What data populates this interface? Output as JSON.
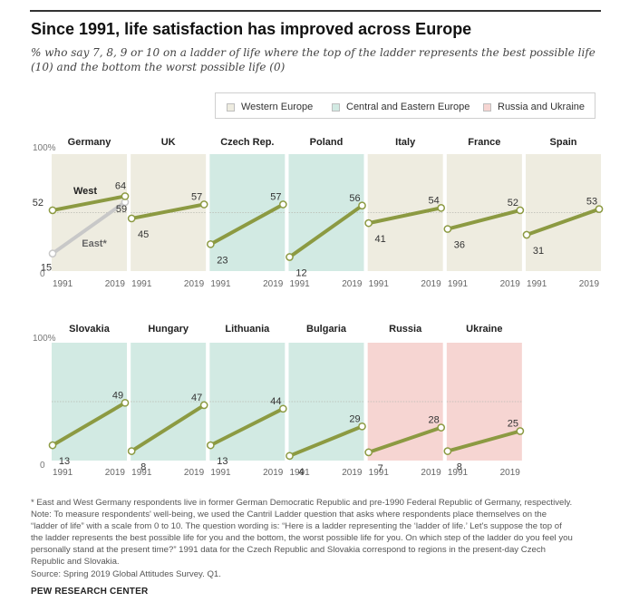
{
  "title": "Since 1991, life satisfaction has improved across Europe",
  "subtitle": "% who say 7, 8, 9 or 10 on a ladder of life where the top of the ladder represents the best possible life (10) and the bottom the worst possible life (0)",
  "legend": [
    {
      "label": "Western Europe",
      "color": "#eeece0"
    },
    {
      "label": "Central and Eastern Europe",
      "color": "#d2eae3"
    },
    {
      "label": "Russia and Ukraine",
      "color": "#f6d5d2"
    }
  ],
  "colors": {
    "line": "#8c9a42",
    "east_line": "#c8c8c8",
    "marker_fill": "#ffffff"
  },
  "footnote_lines": [
    "* East and West Germany respondents live in former German Democratic Republic and pre-1990 Federal Republic of Germany, respectively.",
    "Note: To measure respondents' well-being, we used the Cantril Ladder question that asks where respondents place themselves on the",
    "“ladder of life” with a scale from 0 to 10. The question wording is: “Here is a ladder representing the ‘ladder of life.’ Let's suppose the top of",
    "the ladder represents the best possible life for you and the bottom, the worst possible life for you. On which step of the ladder do you feel you",
    "personally stand at the present time?” 1991 data for the Czech Republic and Slovakia correspond to regions in the present-day Czech",
    "Republic and Slovakia.",
    "Source: Spring 2019 Global Attitudes Survey. Q1."
  ],
  "brand": "PEW RESEARCH CENTER",
  "chart_data": {
    "type": "line",
    "x": [
      1991,
      2019
    ],
    "x_tick_labels": [
      "1991",
      "2019"
    ],
    "ylim": [
      0,
      100
    ],
    "y_tick_labels": [
      "100%",
      "0"
    ],
    "reference_line": 50,
    "panels": [
      {
        "country": "Germany",
        "region": "western",
        "series": [
          {
            "name": "West",
            "values": [
              52,
              64
            ]
          },
          {
            "name": "East*",
            "values": [
              15,
              59
            ]
          }
        ]
      },
      {
        "country": "UK",
        "region": "western",
        "series": [
          {
            "name": "UK",
            "values": [
              45,
              57
            ]
          }
        ]
      },
      {
        "country": "Czech Rep.",
        "region": "central_eastern",
        "series": [
          {
            "name": "Czech Rep.",
            "values": [
              23,
              57
            ]
          }
        ]
      },
      {
        "country": "Poland",
        "region": "central_eastern",
        "series": [
          {
            "name": "Poland",
            "values": [
              12,
              56
            ]
          }
        ]
      },
      {
        "country": "Italy",
        "region": "western",
        "series": [
          {
            "name": "Italy",
            "values": [
              41,
              54
            ]
          }
        ]
      },
      {
        "country": "France",
        "region": "western",
        "series": [
          {
            "name": "France",
            "values": [
              36,
              52
            ]
          }
        ]
      },
      {
        "country": "Spain",
        "region": "western",
        "series": [
          {
            "name": "Spain",
            "values": [
              31,
              53
            ]
          }
        ]
      },
      {
        "country": "Slovakia",
        "region": "central_eastern",
        "series": [
          {
            "name": "Slovakia",
            "values": [
              13,
              49
            ]
          }
        ]
      },
      {
        "country": "Hungary",
        "region": "central_eastern",
        "series": [
          {
            "name": "Hungary",
            "values": [
              8,
              47
            ]
          }
        ]
      },
      {
        "country": "Lithuania",
        "region": "central_eastern",
        "series": [
          {
            "name": "Lithuania",
            "values": [
              13,
              44
            ]
          }
        ]
      },
      {
        "country": "Bulgaria",
        "region": "central_eastern",
        "series": [
          {
            "name": "Bulgaria",
            "values": [
              4,
              29
            ]
          }
        ]
      },
      {
        "country": "Russia",
        "region": "russia_ukraine",
        "series": [
          {
            "name": "Russia",
            "values": [
              7,
              28
            ]
          }
        ]
      },
      {
        "country": "Ukraine",
        "region": "russia_ukraine",
        "series": [
          {
            "name": "Ukraine",
            "values": [
              8,
              25
            ]
          }
        ]
      }
    ]
  }
}
